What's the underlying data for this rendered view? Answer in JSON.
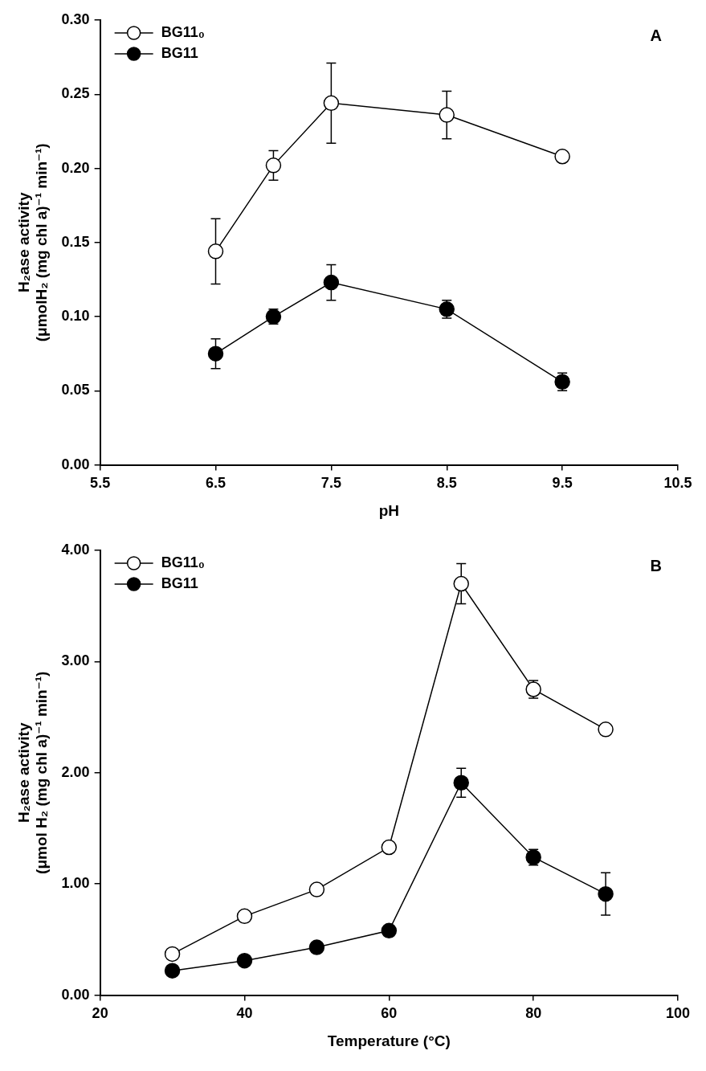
{
  "chart_data": [
    {
      "type": "line",
      "annotations": [
        "A"
      ],
      "x_label": "pH",
      "y_label": [
        "H₂ase activity",
        "(μmolH₂ (mg chl a)⁻¹ min⁻¹)"
      ],
      "xlim": [
        5.5,
        10.5
      ],
      "xticks": [
        5.5,
        6.5,
        7.5,
        8.5,
        9.5,
        10.5
      ],
      "ylim": [
        0,
        0.3
      ],
      "yticks": [
        {
          "value": 0,
          "label": "0.00"
        },
        {
          "value": 0.05,
          "label": "0.05"
        },
        {
          "value": 0.1,
          "label": "0.10"
        },
        {
          "value": 0.15,
          "label": "0.15"
        },
        {
          "value": 0.2,
          "label": "0.20"
        },
        {
          "value": 0.25,
          "label": "0.25"
        },
        {
          "value": 0.3,
          "label": "0.30"
        }
      ],
      "grid": false,
      "legend": "upper left",
      "series": [
        {
          "name": "BG11₀",
          "color": "#000000",
          "marker": "circle_open",
          "line_style": "solid",
          "x": [
            6.5,
            7.0,
            7.5,
            8.5,
            9.5
          ],
          "values": [
            0.144,
            0.202,
            0.244,
            0.236,
            0.208
          ],
          "errors": [
            0.022,
            0.01,
            0.027,
            0.016,
            0.003
          ]
        },
        {
          "name": "BG11",
          "color": "#000000",
          "marker": "circle",
          "line_style": "solid",
          "x": [
            6.5,
            7.0,
            7.5,
            8.5,
            9.5
          ],
          "values": [
            0.075,
            0.1,
            0.123,
            0.105,
            0.056
          ],
          "errors": [
            0.01,
            0.005,
            0.012,
            0.006,
            0.006
          ]
        }
      ]
    },
    {
      "type": "line",
      "annotations": [
        "B"
      ],
      "x_label": "Temperature (°C)",
      "y_label": [
        "H₂ase activity",
        "(μmol H₂ (mg chl a)⁻¹ min⁻¹)"
      ],
      "xlim": [
        20,
        100
      ],
      "xticks": [
        20,
        40,
        60,
        80,
        100
      ],
      "ylim": [
        0,
        4
      ],
      "yticks": [
        {
          "value": 0,
          "label": "0.00"
        },
        {
          "value": 1,
          "label": "1.00"
        },
        {
          "value": 2,
          "label": "2.00"
        },
        {
          "value": 3,
          "label": "3.00"
        },
        {
          "value": 4,
          "label": "4.00"
        }
      ],
      "grid": false,
      "legend": "upper left",
      "series": [
        {
          "name": "BG11₀",
          "color": "#000000",
          "marker": "circle_open",
          "line_style": "solid",
          "x": [
            30,
            40,
            50,
            60,
            70,
            80,
            90
          ],
          "values": [
            0.37,
            0.71,
            0.95,
            1.33,
            3.7,
            2.75,
            2.39
          ],
          "errors": [
            0.02,
            0.03,
            0.02,
            0.02,
            0.18,
            0.08,
            0.02
          ]
        },
        {
          "name": "BG11",
          "color": "#000000",
          "marker": "circle",
          "line_style": "solid",
          "x": [
            30,
            40,
            50,
            60,
            70,
            80,
            90
          ],
          "values": [
            0.22,
            0.31,
            0.43,
            0.58,
            1.91,
            1.24,
            0.91
          ],
          "errors": [
            0.02,
            0.02,
            0.02,
            0.02,
            0.13,
            0.07,
            0.19
          ]
        }
      ]
    }
  ]
}
